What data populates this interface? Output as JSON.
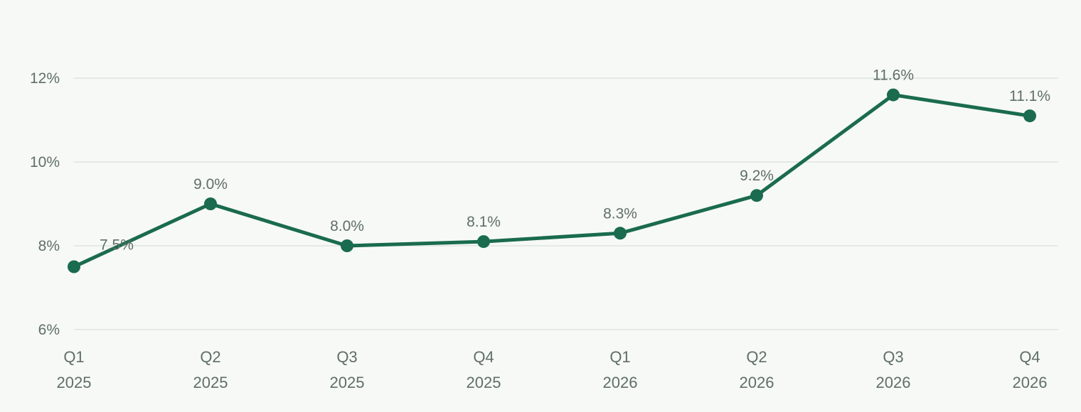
{
  "chart_data": {
    "type": "line",
    "categories": [
      [
        "Q1",
        "2025"
      ],
      [
        "Q2",
        "2025"
      ],
      [
        "Q3",
        "2025"
      ],
      [
        "Q4",
        "2025"
      ],
      [
        "Q1",
        "2026"
      ],
      [
        "Q2",
        "2026"
      ],
      [
        "Q3",
        "2026"
      ],
      [
        "Q4",
        "2026"
      ]
    ],
    "series": [
      {
        "values": [
          7.5,
          9.0,
          8.0,
          8.1,
          8.3,
          9.2,
          11.6,
          11.1
        ],
        "labels": [
          "7.5%",
          "9.0%",
          "8.0%",
          "8.1%",
          "8.3%",
          "9.2%",
          "11.6%",
          "11.1%"
        ],
        "color": "#1a6b4f"
      }
    ],
    "y_ticks": [
      6,
      8,
      10,
      12
    ],
    "y_tick_labels": [
      "6%",
      "8%",
      "10%",
      "12%"
    ],
    "ylim": [
      6,
      12.5
    ],
    "grid": true,
    "legend": false,
    "colors": {
      "background": "#f7f9f7",
      "grid": "#dfe5e1",
      "text": "#5f6f66"
    }
  }
}
